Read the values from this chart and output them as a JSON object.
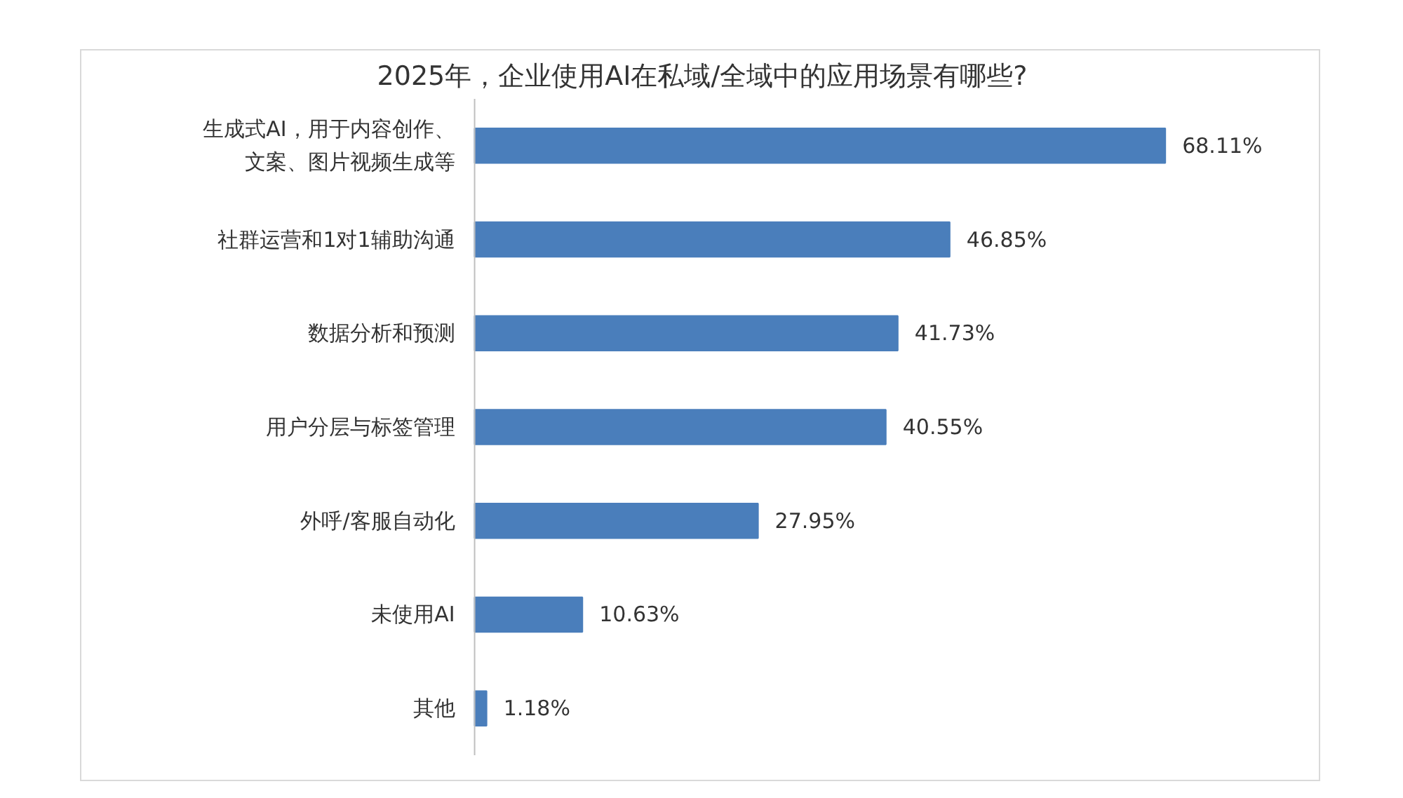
{
  "chart_data": {
    "type": "bar",
    "orientation": "horizontal",
    "title": "2025年，企业使用AI在私域/全域中的应用场景有哪些?",
    "categories": [
      "生成式AI，用于内容创作、文案、图片视频生成等",
      "社群运营和1对1辅助沟通",
      "数据分析和预测",
      "用户分层与标签管理",
      "外呼/客服自动化",
      "未使用AI",
      "其他"
    ],
    "values": [
      68.11,
      46.85,
      41.73,
      40.55,
      27.95,
      10.63,
      1.18
    ],
    "value_labels": [
      "68.11%",
      "46.85%",
      "41.73%",
      "40.55%",
      "27.95%",
      "10.63%",
      "1.18%"
    ],
    "color": "#4a7ebb",
    "grid": false
  }
}
